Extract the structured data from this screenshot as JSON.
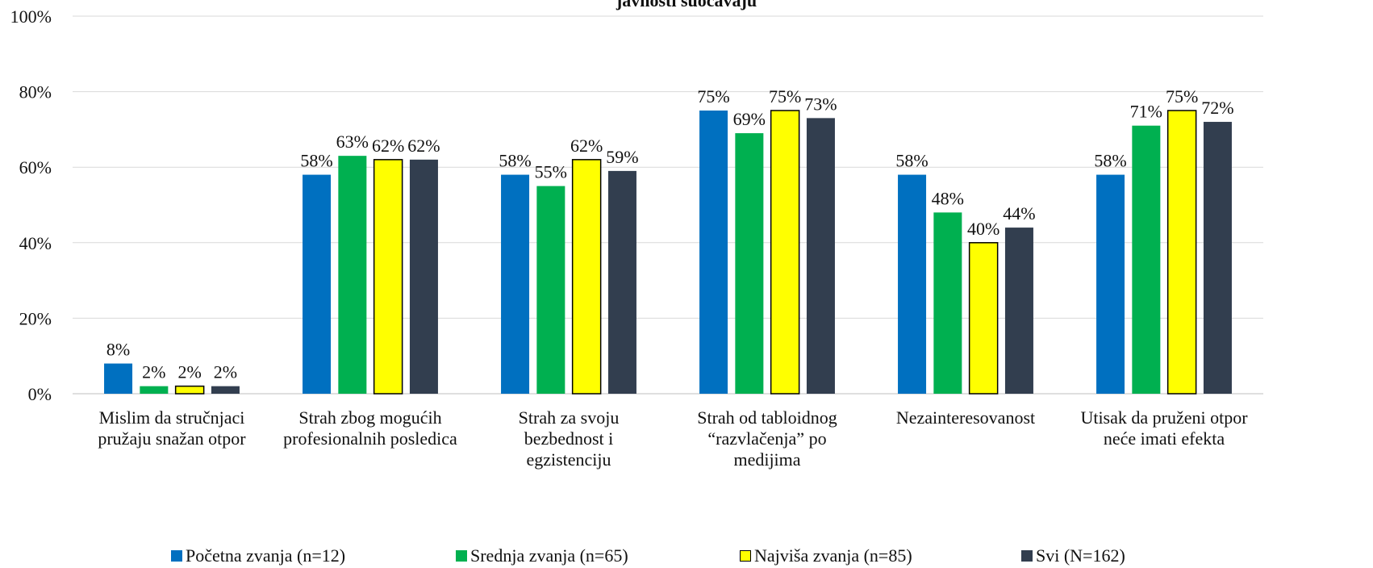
{
  "chart_data": {
    "type": "bar",
    "title": "javnosti suočavaju",
    "xlabel": "",
    "ylabel": "",
    "ylim": [
      0,
      100
    ],
    "ytick_format": "percent",
    "yticks": [
      "0%",
      "20%",
      "40%",
      "60%",
      "80%",
      "100%"
    ],
    "grid": true,
    "legend_position": "bottom",
    "categories": [
      [
        "Mislim da stručnjaci",
        "pružaju snažan otpor"
      ],
      [
        "Strah zbog mogućih",
        "profesionalnih posledica"
      ],
      [
        "Strah za svoju",
        "bezbednost i",
        "egzistenciju"
      ],
      [
        "Strah od tabloidnog",
        "“razvlačenja” po",
        "medijima"
      ],
      [
        "Nezainteresovanost"
      ],
      [
        "Utisak da pruženi otpor",
        "neće imati efekta"
      ]
    ],
    "series": [
      {
        "name": "Početna zvanja (n=12)",
        "color": "#0070C0",
        "values": [
          8,
          58,
          58,
          75,
          58,
          58
        ]
      },
      {
        "name": "Srednja zvanja (n=65)",
        "color": "#00B050",
        "values": [
          2,
          63,
          55,
          69,
          48,
          71
        ]
      },
      {
        "name": "Najviša zvanja (n=85)",
        "color": "#FFFF00",
        "values": [
          2,
          62,
          62,
          75,
          40,
          75
        ]
      },
      {
        "name": "Svi (N=162)",
        "color": "#323E4F",
        "values": [
          2,
          62,
          59,
          73,
          44,
          72
        ]
      }
    ]
  }
}
